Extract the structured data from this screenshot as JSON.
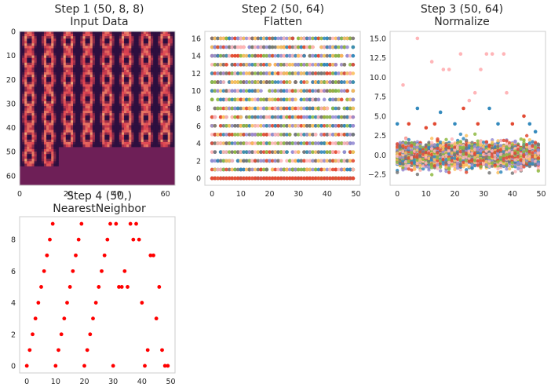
{
  "colors": {
    "axes_edge": "#cccccc",
    "tick_text": "#262626",
    "nn_points": "#ff0000",
    "image_low": "#2d0f3f",
    "image_high": "#f2b27a",
    "image_pad": "#6e1f57",
    "palette": [
      "#e24a33",
      "#348abd",
      "#988ed5",
      "#777777",
      "#fbc15e",
      "#8eba42",
      "#ffb5b8"
    ]
  },
  "chart_data": [
    {
      "type": "heatmap",
      "title": "Step 1 (50, 8, 8)",
      "subtitle": "Input Data",
      "xlabel": "",
      "ylabel": "",
      "xlim": [
        0,
        64
      ],
      "ylim": [
        64,
        0
      ],
      "x_ticks": [
        0,
        20,
        40,
        60
      ],
      "x_tick_labels": [
        "0",
        "20",
        "40",
        "60"
      ],
      "y_ticks": [
        0,
        10,
        20,
        30,
        40,
        50,
        60
      ],
      "y_tick_labels": [
        "0",
        "10",
        "20",
        "30",
        "40",
        "50",
        "60"
      ],
      "grid": false,
      "description_of_values": "50 digit images (8x8) tiled into a 64x64 mosaic, remaining area padded",
      "tiles": {
        "columns": 8,
        "rows_filled": 6,
        "last_row_count": 2,
        "tile_size": 8
      }
    },
    {
      "type": "scatter",
      "title": "Step 2 (50, 64)",
      "subtitle": "Flatten",
      "xlabel": "",
      "ylabel": "",
      "xlim": [
        -2.5,
        51.5
      ],
      "ylim": [
        -0.8,
        16.8
      ],
      "x_ticks": [
        0,
        10,
        20,
        30,
        40,
        50
      ],
      "x_tick_labels": [
        "0",
        "10",
        "20",
        "30",
        "40",
        "50"
      ],
      "y_ticks": [
        0,
        2,
        4,
        6,
        8,
        10,
        12,
        14,
        16
      ],
      "y_tick_labels": [
        "0",
        "2",
        "4",
        "6",
        "8",
        "10",
        "12",
        "14",
        "16"
      ],
      "grid": false,
      "n_samples": 50,
      "n_features": 64,
      "value_levels": [
        0,
        1,
        2,
        3,
        4,
        5,
        6,
        7,
        8,
        9,
        10,
        11,
        12,
        13,
        14,
        15,
        16
      ]
    },
    {
      "type": "scatter",
      "title": "Step 3 (50, 64)",
      "subtitle": "Normalize",
      "xlabel": "",
      "ylabel": "",
      "xlim": [
        -2.5,
        51.5
      ],
      "ylim": [
        -3.9,
        15.9
      ],
      "x_ticks": [
        0,
        10,
        20,
        30,
        40,
        50
      ],
      "x_tick_labels": [
        "0",
        "10",
        "20",
        "30",
        "40",
        "50"
      ],
      "y_ticks": [
        -2.5,
        0.0,
        2.5,
        5.0,
        7.5,
        10.0,
        12.5,
        15.0
      ],
      "y_tick_labels": [
        "−2.5",
        "0.0",
        "2.5",
        "5.0",
        "7.5",
        "10.0",
        "12.5",
        "15.0"
      ],
      "grid": false,
      "n_samples": 50,
      "n_features": 64,
      "outliers": [
        {
          "x": 2,
          "y": 9.0
        },
        {
          "x": 7,
          "y": 15.0
        },
        {
          "x": 12,
          "y": 12.0
        },
        {
          "x": 16,
          "y": 11.0
        },
        {
          "x": 18,
          "y": 11.0
        },
        {
          "x": 22,
          "y": 13.0
        },
        {
          "x": 25,
          "y": 7.0
        },
        {
          "x": 27,
          "y": 8.0
        },
        {
          "x": 29,
          "y": 11.0
        },
        {
          "x": 31,
          "y": 13.0
        },
        {
          "x": 33,
          "y": 13.0
        },
        {
          "x": 37,
          "y": 13.0
        },
        {
          "x": 38,
          "y": 8.0
        },
        {
          "x": 7,
          "y": 6.0
        },
        {
          "x": 13,
          "y": 4.0
        },
        {
          "x": 15,
          "y": 5.5
        },
        {
          "x": 23,
          "y": 6.0
        },
        {
          "x": 32,
          "y": 6.0
        },
        {
          "x": 44,
          "y": 5.0
        },
        {
          "x": 0,
          "y": 4.0
        },
        {
          "x": 4,
          "y": 4.0
        },
        {
          "x": 20,
          "y": 4.0
        },
        {
          "x": 28,
          "y": 4.0
        },
        {
          "x": 35,
          "y": 4.0
        },
        {
          "x": 40,
          "y": 4.0
        },
        {
          "x": 46,
          "y": 4.0
        },
        {
          "x": 10,
          "y": 3.5
        },
        {
          "x": 48,
          "y": 3.0
        }
      ]
    },
    {
      "type": "scatter",
      "title": "Step 4 (50,)",
      "subtitle": "NearestNeighbor",
      "xlabel": "",
      "ylabel": "",
      "xlim": [
        -2.5,
        51.5
      ],
      "ylim": [
        -0.45,
        9.45
      ],
      "x_ticks": [
        0,
        10,
        20,
        30,
        40,
        50
      ],
      "x_tick_labels": [
        "0",
        "10",
        "20",
        "30",
        "40",
        "50"
      ],
      "y_ticks": [
        0,
        2,
        4,
        6,
        8
      ],
      "y_tick_labels": [
        "0",
        "2",
        "4",
        "6",
        "8"
      ],
      "grid": false,
      "series": [
        {
          "x": [
            0,
            1,
            2,
            3,
            4,
            5,
            6,
            7,
            8,
            9,
            10,
            11,
            12,
            13,
            14,
            15,
            16,
            17,
            18,
            19,
            20,
            21,
            22,
            23,
            24,
            25,
            26,
            27,
            28,
            29,
            30,
            31,
            32,
            33,
            34,
            35,
            36,
            37,
            38,
            39,
            40,
            41,
            42,
            43,
            44,
            45,
            46,
            47,
            48,
            49
          ],
          "values": [
            0,
            1,
            2,
            3,
            4,
            5,
            6,
            7,
            8,
            9,
            0,
            1,
            2,
            3,
            4,
            5,
            6,
            7,
            8,
            9,
            0,
            1,
            2,
            3,
            4,
            5,
            6,
            7,
            8,
            9,
            0,
            9,
            5,
            5,
            6,
            5,
            9,
            8,
            9,
            8,
            4,
            0,
            1,
            7,
            7,
            3,
            5,
            1,
            0,
            0
          ]
        }
      ]
    }
  ]
}
